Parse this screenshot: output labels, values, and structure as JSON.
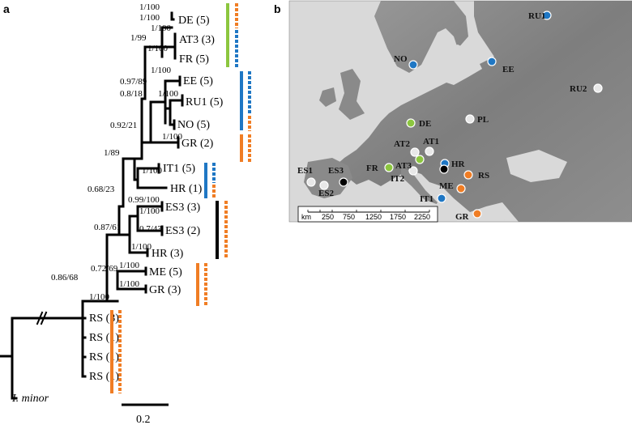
{
  "panels": {
    "a": "a",
    "b": "b"
  },
  "colors": {
    "green": "#8cc63f",
    "blue": "#1f77c4",
    "orange": "#f07d24",
    "black": "#000000",
    "white": "#e8e8e8",
    "sea": "#d9d9d9",
    "land": "#8a8a8a"
  },
  "tree": {
    "tips": [
      {
        "label": "DE (5)"
      },
      {
        "label": "AT3 (3)"
      },
      {
        "label": "FR (5)"
      },
      {
        "label": "EE (5)"
      },
      {
        "label": "RU1 (5)"
      },
      {
        "label": "NO (5)"
      },
      {
        "label": "GR (2)"
      },
      {
        "label": "IT1 (5)"
      },
      {
        "label": "HR (1)"
      },
      {
        "label": "ES3 (3)"
      },
      {
        "label": "ES3 (2)"
      },
      {
        "label": "HR (3)"
      },
      {
        "label": "ME (5)"
      },
      {
        "label": "GR (3)"
      },
      {
        "label": "RS (3)"
      },
      {
        "label": "RS (1)"
      },
      {
        "label": "RS (1)"
      },
      {
        "label": "RS (1)"
      },
      {
        "label": "I. minor"
      }
    ],
    "supports": [
      "1/100",
      "1/100",
      "1/100",
      "1/99",
      "1/100",
      "1/100",
      "0.97/89",
      "0.8/18",
      "1/100",
      "0.92/21",
      "1/100",
      "1/89",
      "1/100",
      "0.68/23",
      "0.99/100",
      "1/100",
      "0.7/43",
      "0.87/61",
      "1/100",
      "1/100",
      "1/100",
      "0.72/69",
      "0.86/68",
      "1/100"
    ],
    "scale_bar": "0.2"
  },
  "map": {
    "scale_unit": "km",
    "scale_ticks": [
      "250",
      "750",
      "1250",
      "1750",
      "2250"
    ],
    "sites": [
      {
        "label": "RU1",
        "color": "blue"
      },
      {
        "label": "NO",
        "color": "blue"
      },
      {
        "label": "EE",
        "color": "blue"
      },
      {
        "label": "RU2",
        "color": "white"
      },
      {
        "label": "DE",
        "color": "green"
      },
      {
        "label": "PL",
        "color": "white"
      },
      {
        "label": "AT2",
        "color": "white"
      },
      {
        "label": "AT1",
        "color": "white"
      },
      {
        "label": "AT3",
        "color": "green"
      },
      {
        "label": "FR",
        "color": "green"
      },
      {
        "label": "IT2",
        "color": "white"
      },
      {
        "label": "ES1",
        "color": "white"
      },
      {
        "label": "ES3",
        "color": "black"
      },
      {
        "label": "ES2",
        "color": "white"
      },
      {
        "label": "HR",
        "color": "blue"
      },
      {
        "label": "RS",
        "color": "orange"
      },
      {
        "label": "ME",
        "color": "orange"
      },
      {
        "label": "IT1",
        "color": "blue"
      },
      {
        "label": "GR",
        "color": "orange"
      }
    ]
  }
}
